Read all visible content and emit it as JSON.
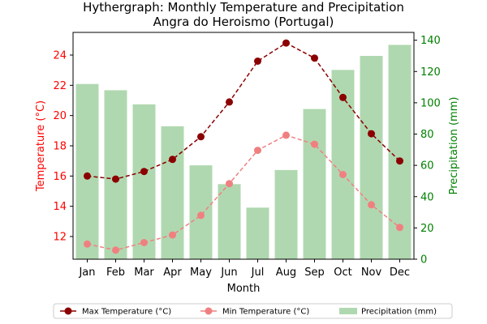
{
  "chart_data": {
    "type": "bar",
    "title": "Hythergraph: Monthly Temperature and Precipitation",
    "subtitle": "Angra do Heroismo (Portugal)",
    "xlabel": "Month",
    "ylabel_left": "Temperature (°C)",
    "ylabel_right": "Precipitation (mm)",
    "categories": [
      "Jan",
      "Feb",
      "Mar",
      "Apr",
      "May",
      "Jun",
      "Jul",
      "Aug",
      "Sep",
      "Oct",
      "Nov",
      "Dec"
    ],
    "ylim_left": [
      10.5,
      25.5
    ],
    "ylim_right": [
      0,
      145
    ],
    "yticks_left": [
      12,
      14,
      16,
      18,
      20,
      22,
      24
    ],
    "yticks_right": [
      0,
      20,
      40,
      60,
      80,
      100,
      120,
      140
    ],
    "grid": false,
    "legend_position": "bottom-center",
    "series": [
      {
        "name": "Max Temperature (°C)",
        "kind": "line",
        "axis": "left",
        "color": "#8b0000",
        "line_style": "dashed",
        "marker": "circle",
        "values": [
          16.0,
          15.8,
          16.3,
          17.1,
          18.6,
          20.9,
          23.6,
          24.8,
          23.8,
          21.2,
          18.8,
          17.0
        ]
      },
      {
        "name": "Min Temperature (°C)",
        "kind": "line",
        "axis": "left",
        "color": "#f08080",
        "line_style": "dashed",
        "marker": "circle",
        "values": [
          11.5,
          11.1,
          11.6,
          12.1,
          13.4,
          15.5,
          17.7,
          18.7,
          18.1,
          16.1,
          14.1,
          12.6
        ]
      },
      {
        "name": "Precipitation (mm)",
        "kind": "bar",
        "axis": "right",
        "color": "#b0d8b0",
        "values": [
          112,
          108,
          99,
          85,
          60,
          48,
          33,
          57,
          96,
          121,
          130,
          137
        ]
      }
    ],
    "colors": {
      "left_axis": "#ff0000",
      "right_axis": "#008000"
    }
  }
}
